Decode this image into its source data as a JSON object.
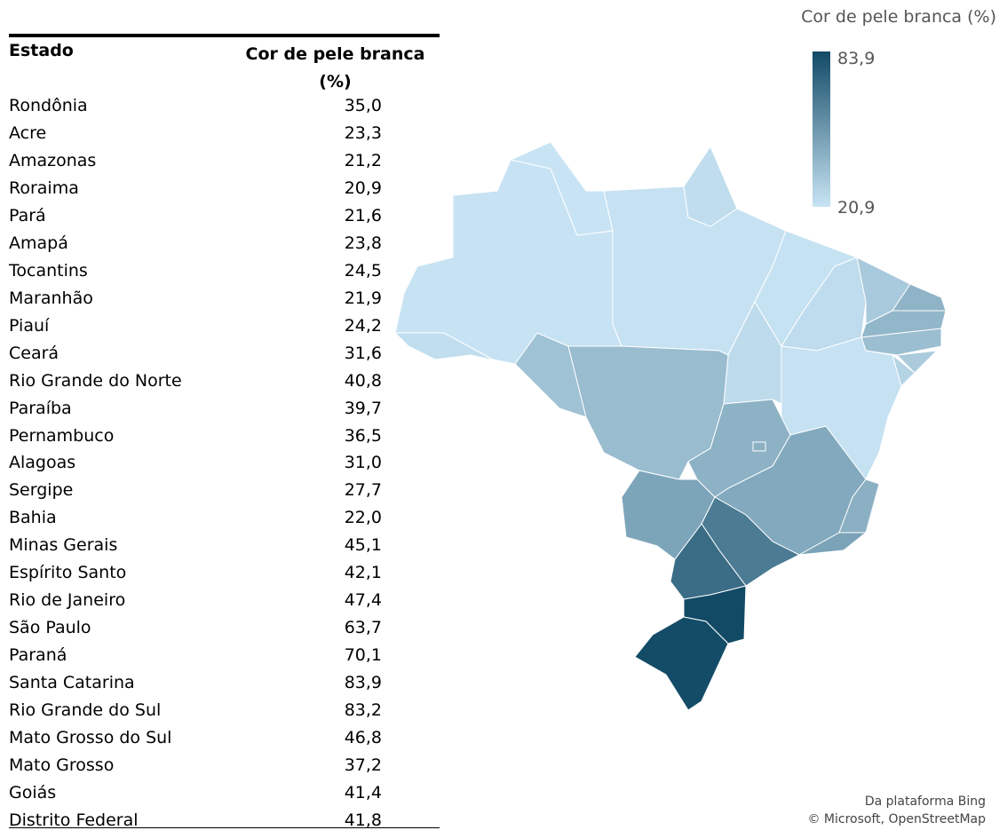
{
  "table": {
    "headers": [
      "Estado",
      "Cor de pele branca (%)"
    ],
    "rows": [
      [
        "Rondônia",
        "35,0"
      ],
      [
        "Acre",
        "23,3"
      ],
      [
        "Amazonas",
        "21,2"
      ],
      [
        "Roraima",
        "20,9"
      ],
      [
        "Pará",
        "21,6"
      ],
      [
        "Amapá",
        "23,8"
      ],
      [
        "Tocantins",
        "24,5"
      ],
      [
        "Maranhão",
        "21,9"
      ],
      [
        "Piauí",
        "24,2"
      ],
      [
        "Ceará",
        "31,6"
      ],
      [
        "Rio Grande do Norte",
        "40,8"
      ],
      [
        "Paraíba",
        "39,7"
      ],
      [
        "Pernambuco",
        "36,5"
      ],
      [
        "Alagoas",
        "31,0"
      ],
      [
        "Sergipe",
        "27,7"
      ],
      [
        "Bahia",
        "22,0"
      ],
      [
        "Minas Gerais",
        "45,1"
      ],
      [
        "Espírito Santo",
        "42,1"
      ],
      [
        "Rio de Janeiro",
        "47,4"
      ],
      [
        "São Paulo",
        "63,7"
      ],
      [
        "Paraná",
        "70,1"
      ],
      [
        "Santa Catarina",
        "83,9"
      ],
      [
        "Rio Grande do Sul",
        "83,2"
      ],
      [
        "Mato Grosso do Sul",
        "46,8"
      ],
      [
        "Mato Grosso",
        "37,2"
      ],
      [
        "Goiás",
        "41,4"
      ],
      [
        "Distrito Federal",
        "41,8"
      ]
    ]
  },
  "legend": {
    "title": "Cor de pele branca (%)",
    "max": "83,9",
    "min": "20,9",
    "color_max": "#124a66",
    "color_min": "#c8e4f4"
  },
  "attribution": [
    "Da plataforma Bing",
    "© Microsoft, OpenStreetMap"
  ]
}
